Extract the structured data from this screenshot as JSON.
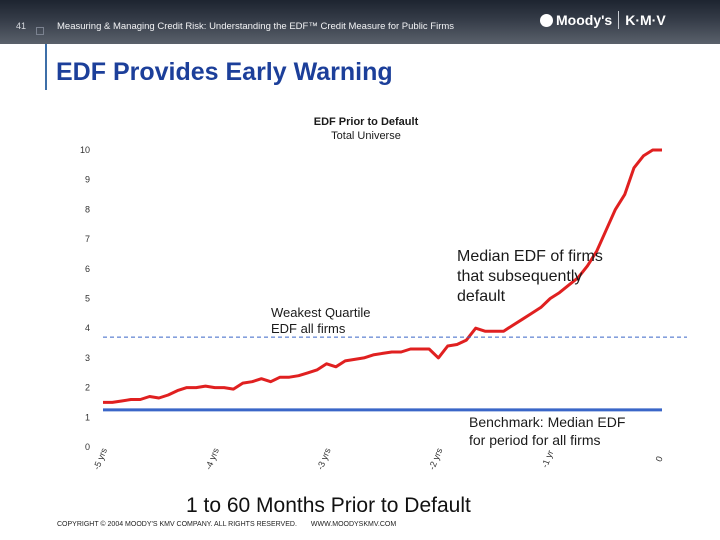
{
  "header": {
    "slide_number": "41",
    "text": "Measuring & Managing Credit Risk: Understanding the EDF™ Credit Measure for Public Firms",
    "logo_left": "Moody's",
    "logo_right": "K·M·V"
  },
  "slide": {
    "title": "EDF Provides Early Warning"
  },
  "annotations": {
    "weakest_line1": "Weakest Quartile",
    "weakest_line2": "EDF all firms",
    "median_line1": "Median EDF of firms",
    "median_line2": "that subsequently",
    "median_line3": "default",
    "bench_line1": "Benchmark:  Median EDF",
    "bench_line2": "for period for all firms"
  },
  "footer": {
    "copyright": "COPYRIGHT © 2004 MOODY'S KMV COMPANY. ALL RIGHTS RESERVED.",
    "website": "WWW.MOODYSKMV.COM"
  },
  "chart_data": {
    "type": "line",
    "title": "EDF Prior to Default",
    "subtitle": "Total Universe",
    "xlabel": "1 to 60 Months Prior to Default",
    "ylabel": "",
    "ylim": [
      0,
      10
    ],
    "yticks": [
      "0",
      "1",
      "2",
      "3",
      "4",
      "5",
      "6",
      "7",
      "8",
      "9",
      "10"
    ],
    "xlim": [
      -60,
      0
    ],
    "xticks": [
      {
        "value": -60,
        "label": "-5 yrs"
      },
      {
        "value": -48,
        "label": "-4 yrs"
      },
      {
        "value": -36,
        "label": "-3 yrs"
      },
      {
        "value": -24,
        "label": "-2 yrs"
      },
      {
        "value": -12,
        "label": "-1 yr"
      },
      {
        "value": 0,
        "label": "0"
      }
    ],
    "grid": false,
    "colors": {
      "median_default": "#e02020",
      "benchmark": "#3a66c8",
      "weakest_quartile": "#3a66c8"
    },
    "series": [
      {
        "key": "median_default",
        "x": [
          -60,
          -59,
          -58,
          -57,
          -56,
          -55,
          -54,
          -53,
          -52,
          -51,
          -50,
          -49,
          -48,
          -47,
          -46,
          -45,
          -44,
          -43,
          -42,
          -41,
          -40,
          -39,
          -38,
          -37,
          -36,
          -35,
          -34,
          -33,
          -32,
          -31,
          -30,
          -29,
          -28,
          -27,
          -26,
          -25,
          -24,
          -23,
          -22,
          -21,
          -20,
          -19,
          -18,
          -17,
          -16,
          -15,
          -14,
          -13,
          -12,
          -11,
          -10,
          -9,
          -8,
          -7,
          -6,
          -5,
          -4,
          -3,
          -2,
          -1,
          0
        ],
        "values": [
          1.5,
          1.5,
          1.55,
          1.6,
          1.6,
          1.7,
          1.65,
          1.75,
          1.9,
          2.0,
          2.0,
          2.05,
          2.0,
          2.0,
          1.95,
          2.15,
          2.2,
          2.3,
          2.2,
          2.35,
          2.35,
          2.4,
          2.5,
          2.6,
          2.8,
          2.7,
          2.9,
          2.95,
          3.0,
          3.1,
          3.15,
          3.2,
          3.2,
          3.3,
          3.3,
          3.3,
          3.0,
          3.4,
          3.45,
          3.6,
          4.0,
          3.9,
          3.9,
          3.9,
          4.1,
          4.3,
          4.5,
          4.7,
          5.0,
          5.2,
          5.45,
          5.7,
          6.1,
          6.6,
          7.3,
          8.0,
          8.5,
          9.4,
          9.8,
          10.0,
          10.0
        ]
      },
      {
        "key": "benchmark",
        "x": [
          -60,
          0
        ],
        "values": [
          1.25,
          1.25
        ]
      },
      {
        "key": "weakest_quartile",
        "x": [
          -60,
          0
        ],
        "values": [
          3.7,
          3.7
        ],
        "dashed": true
      }
    ]
  }
}
